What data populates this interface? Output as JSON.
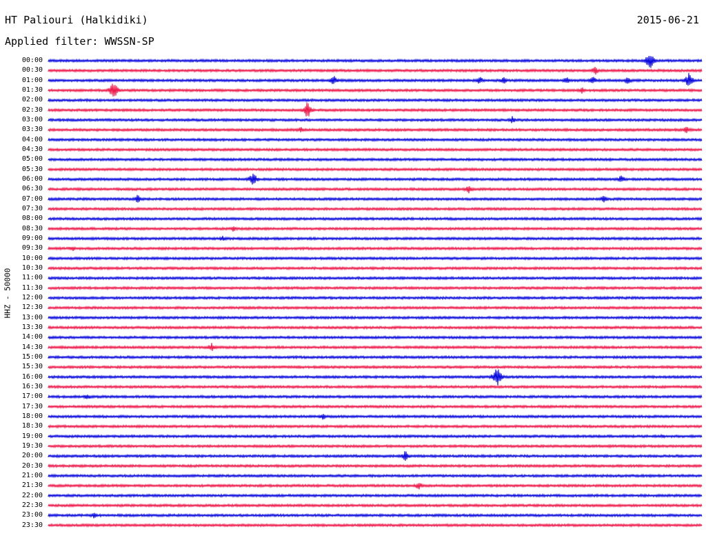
{
  "header": {
    "station": "HT Paliouri (Halkidiki)",
    "date": "2015-06-21",
    "filter": "Applied filter: WWSSN-SP"
  },
  "chart_data": {
    "type": "line",
    "title": "HT Paliouri (Halkidiki)",
    "ylabel": "HHZ - 50000",
    "time_labels": [
      "00:00",
      "00:30",
      "01:00",
      "01:30",
      "02:00",
      "02:30",
      "03:00",
      "03:30",
      "04:00",
      "04:30",
      "05:00",
      "05:30",
      "06:00",
      "06:30",
      "07:00",
      "07:30",
      "08:00",
      "08:30",
      "09:00",
      "09:30",
      "10:00",
      "10:30",
      "11:00",
      "11:30",
      "12:00",
      "12:30",
      "13:00",
      "13:30",
      "14:00",
      "14:30",
      "15:00",
      "15:30",
      "16:00",
      "16:30",
      "17:00",
      "17:30",
      "18:00",
      "18:30",
      "19:00",
      "19:30",
      "20:00",
      "20:30",
      "21:00",
      "21:30",
      "22:00",
      "22:30",
      "23:00",
      "23:30"
    ],
    "colors": [
      "#0000dd",
      "#ee1144"
    ],
    "events": [
      {
        "row": 0,
        "minute": 27.6,
        "amplitude": 16
      },
      {
        "row": 1,
        "minute": 25.1,
        "amplitude": 7
      },
      {
        "row": 2,
        "minute": 13.1,
        "amplitude": 8
      },
      {
        "row": 2,
        "minute": 19.8,
        "amplitude": 7
      },
      {
        "row": 2,
        "minute": 20.9,
        "amplitude": 6
      },
      {
        "row": 2,
        "minute": 23.8,
        "amplitude": 6
      },
      {
        "row": 2,
        "minute": 25.0,
        "amplitude": 7
      },
      {
        "row": 2,
        "minute": 26.6,
        "amplitude": 7
      },
      {
        "row": 2,
        "minute": 29.4,
        "amplitude": 12
      },
      {
        "row": 3,
        "minute": 3.0,
        "amplitude": 15
      },
      {
        "row": 3,
        "minute": 24.5,
        "amplitude": 5
      },
      {
        "row": 5,
        "minute": 11.9,
        "amplitude": 14
      },
      {
        "row": 6,
        "minute": 21.3,
        "amplitude": 6
      },
      {
        "row": 7,
        "minute": 11.6,
        "amplitude": 5
      },
      {
        "row": 7,
        "minute": 29.3,
        "amplitude": 6
      },
      {
        "row": 12,
        "minute": 9.4,
        "amplitude": 12
      },
      {
        "row": 12,
        "minute": 26.3,
        "amplitude": 7
      },
      {
        "row": 13,
        "minute": 19.3,
        "amplitude": 7
      },
      {
        "row": 14,
        "minute": 4.1,
        "amplitude": 7
      },
      {
        "row": 14,
        "minute": 25.5,
        "amplitude": 6
      },
      {
        "row": 17,
        "minute": 8.5,
        "amplitude": 5
      },
      {
        "row": 18,
        "minute": 8.0,
        "amplitude": 5
      },
      {
        "row": 19,
        "minute": 1.1,
        "amplitude": 5
      },
      {
        "row": 29,
        "minute": 7.5,
        "amplitude": 7
      },
      {
        "row": 32,
        "minute": 20.6,
        "amplitude": 18
      },
      {
        "row": 34,
        "minute": 1.8,
        "amplitude": 5
      },
      {
        "row": 36,
        "minute": 12.6,
        "amplitude": 6
      },
      {
        "row": 38,
        "minute": 28.2,
        "amplitude": 4
      },
      {
        "row": 40,
        "minute": 16.4,
        "amplitude": 9
      },
      {
        "row": 43,
        "minute": 17.0,
        "amplitude": 7
      },
      {
        "row": 46,
        "minute": 2.1,
        "amplitude": 5
      }
    ]
  }
}
